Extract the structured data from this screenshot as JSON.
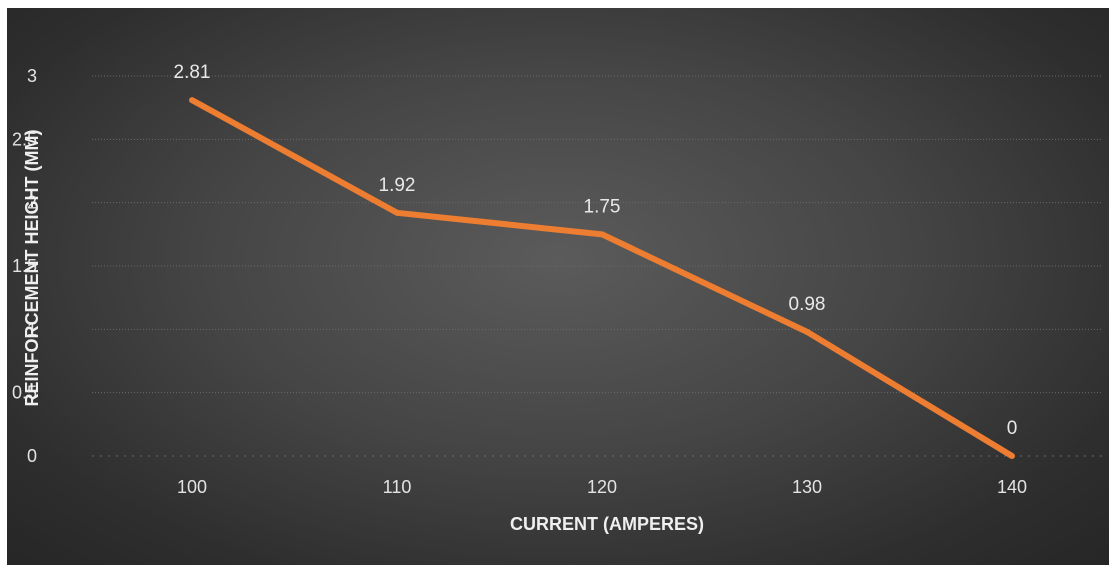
{
  "chart_data": {
    "type": "line",
    "title": "",
    "xlabel": "CURRENT (AMPERES)",
    "ylabel": "REINFORCEMENT HEIGHT (MM)",
    "categories": [
      "100",
      "110",
      "120",
      "130",
      "140"
    ],
    "series": [
      {
        "values": [
          2.81,
          1.92,
          1.75,
          0.98,
          0
        ]
      }
    ],
    "data_labels": [
      "2.81",
      "1.92",
      "1.75",
      "0.98",
      "0"
    ],
    "yticks": [
      "0",
      "0.5",
      "1",
      "1.5",
      "2",
      "2.5",
      "3"
    ],
    "ylim": [
      0,
      3
    ],
    "grid": true,
    "legend": "none"
  },
  "colors": {
    "line": "#ED7D31",
    "background": "#3f3f3f",
    "gridline": "#6a6a6a",
    "text": "#e3e3e3"
  }
}
